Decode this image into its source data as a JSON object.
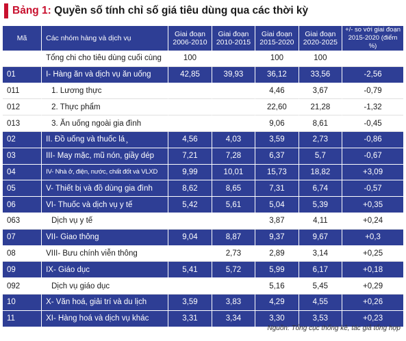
{
  "title": {
    "label": "Bảng 1:",
    "text": "Quyền số tính chỉ số giá tiêu dùng qua các thời kỳ"
  },
  "header": {
    "code": "Mã",
    "group": "Các nhóm hàng và dịch vụ",
    "p1_line1": "Giai đoạn",
    "p1_line2": "2006-2010",
    "p2_line1": "Giai đoạn",
    "p2_line2": "2010-2015",
    "p3_line1": "Giai đoạn",
    "p3_line2": "2015-2020",
    "p4_line1": "Giai đoạn",
    "p4_line2": "2020-2025",
    "diff_line1": "+/- so với giai đoạn",
    "diff_line2": "2015-2020 (điểm %)"
  },
  "rows": [
    {
      "code": "",
      "name": "Tổng chi cho tiêu dùng cuối cùng",
      "p1": "100",
      "p2": "",
      "p3": "100",
      "p4": "100",
      "diff": ""
    },
    {
      "code": "01",
      "name": "I- Hàng ăn và dịch vụ ăn uống",
      "p1": "42,85",
      "p2": "39,93",
      "p3": "36,12",
      "p4": "33,56",
      "diff": "-2,56"
    },
    {
      "code": "011",
      "name": "1. Lương thực",
      "p1": "",
      "p2": "",
      "p3": "4,46",
      "p4": "3,67",
      "diff": "-0,79"
    },
    {
      "code": "012",
      "name": "2. Thực phẩm",
      "p1": "",
      "p2": "",
      "p3": "22,60",
      "p4": "21,28",
      "diff": "-1,32"
    },
    {
      "code": "013",
      "name": "3. Ăn uống ngoài gia đình",
      "p1": "",
      "p2": "",
      "p3": "9,06",
      "p4": "8,61",
      "diff": "-0,45"
    },
    {
      "code": "02",
      "name": "II. Đồ uống và thuốc lá ̧",
      "p1": "4,56",
      "p2": "4,03",
      "p3": "3,59",
      "p4": "2,73",
      "diff": "-0,86"
    },
    {
      "code": "03",
      "name": "III- May mặc, mũ nón, giầy dép",
      "p1": "7,21",
      "p2": "7,28",
      "p3": "6,37",
      "p4": "5,7",
      "diff": "-0,67"
    },
    {
      "code": "04",
      "name": "IV- Nhà ở, điện, nước, chất đốt và VLXD",
      "p1": "9,99",
      "p2": "10,01",
      "p3": "15,73",
      "p4": "18,82",
      "diff": "+3,09"
    },
    {
      "code": "05",
      "name": "V- Thiết bị và đồ dùng gia đình",
      "p1": "8,62",
      "p2": "8,65",
      "p3": "7,31",
      "p4": "6,74",
      "diff": "-0,57"
    },
    {
      "code": "06",
      "name": "VI- Thuốc và dịch vụ y tế",
      "p1": "5,42",
      "p2": "5,61",
      "p3": "5,04",
      "p4": "5,39",
      "diff": "+0,35"
    },
    {
      "code": "063",
      "name": "Dịch vụ y tế",
      "p1": "",
      "p2": "",
      "p3": "3,87",
      "p4": "4,11",
      "diff": "+0,24"
    },
    {
      "code": "07",
      "name": "VII- Giao thông",
      "p1": "9,04",
      "p2": "8,87",
      "p3": "9,37",
      "p4": "9,67",
      "diff": "+0,3"
    },
    {
      "code": "08",
      "name": "VIII- Bưu chính viễn thông",
      "p1": "",
      "p2": "2,73",
      "p3": "2,89",
      "p4": "3,14",
      "diff": "+0,25"
    },
    {
      "code": "09",
      "name": "IX- Giáo dục",
      "p1": "5,41",
      "p2": "5,72",
      "p3": "5,99",
      "p4": "6,17",
      "diff": "+0,18"
    },
    {
      "code": "092",
      "name": "Dịch vụ giáo dục",
      "p1": "",
      "p2": "",
      "p3": "5,16",
      "p4": "5,45",
      "diff": "+0,29"
    },
    {
      "code": "10",
      "name": "X- Văn hoá, giải trí và du lịch",
      "p1": "3,59",
      "p2": "3,83",
      "p3": "4,29",
      "p4": "4,55",
      "diff": "+0,26"
    },
    {
      "code": "11",
      "name": "XI- Hàng hoá và dịch vụ khác",
      "p1": "3,31",
      "p2": "3,34",
      "p3": "3,30",
      "p4": "3,53",
      "diff": "+0,23"
    }
  ],
  "source": "Nguồn: Tổng cục thống kê, tác giả tổng hợp",
  "colors": {
    "header_bg": "#2e3e95",
    "highlight_row_bg": "#2e3e95",
    "title_accent": "#c8102e"
  }
}
